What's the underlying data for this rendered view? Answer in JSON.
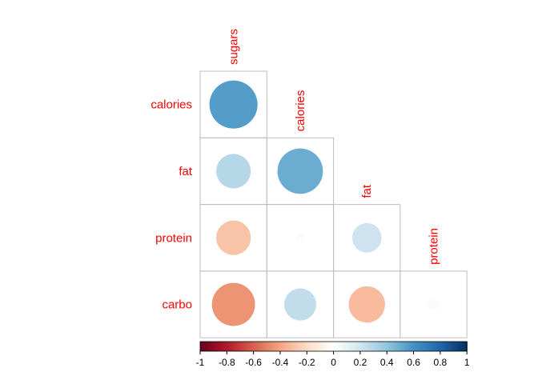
{
  "chart_data": {
    "type": "heatmap",
    "layout": "lower-triangle correlation plot",
    "glyph": "circle",
    "row_labels": [
      "calories",
      "fat",
      "protein",
      "carbo"
    ],
    "col_labels": [
      "sugars",
      "calories",
      "fat",
      "protein"
    ],
    "cells": [
      {
        "row": "calories",
        "col": "sugars",
        "value": 0.56
      },
      {
        "row": "fat",
        "col": "sugars",
        "value": 0.29
      },
      {
        "row": "fat",
        "col": "calories",
        "value": 0.5
      },
      {
        "row": "protein",
        "col": "sugars",
        "value": -0.29
      },
      {
        "row": "protein",
        "col": "calories",
        "value": 0.02
      },
      {
        "row": "protein",
        "col": "fat",
        "value": 0.21
      },
      {
        "row": "carbo",
        "col": "sugars",
        "value": -0.45
      },
      {
        "row": "carbo",
        "col": "calories",
        "value": 0.25
      },
      {
        "row": "carbo",
        "col": "fat",
        "value": -0.32
      },
      {
        "row": "carbo",
        "col": "protein",
        "value": -0.03
      }
    ],
    "colorbar": {
      "range": [
        -1,
        1
      ],
      "ticks": [
        "-1",
        "-0.8",
        "-0.6",
        "-0.4",
        "-0.2",
        "0",
        "0.2",
        "0.4",
        "0.6",
        "0.8",
        "1"
      ],
      "colors": [
        "#67001f",
        "#b2182b",
        "#d6604d",
        "#f4a582",
        "#fddbc7",
        "#ffffff",
        "#d1e5f0",
        "#92c5de",
        "#4393c3",
        "#2166ac",
        "#053061"
      ]
    },
    "label_color": "#ff0000",
    "grid": true
  }
}
